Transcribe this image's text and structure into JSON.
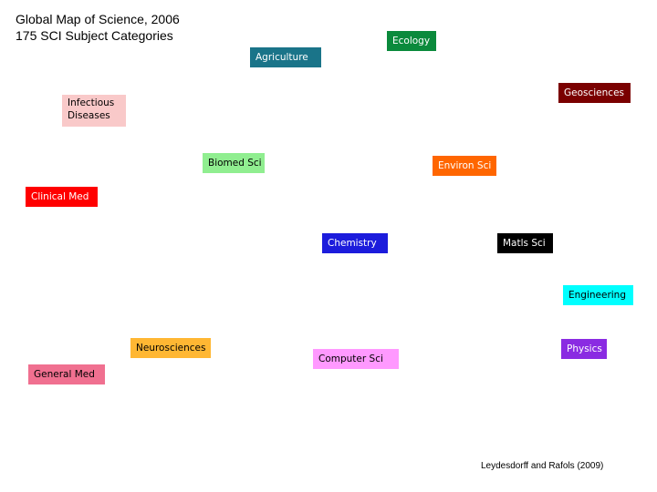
{
  "header": {
    "title": "Global Map of Science, 2006",
    "subtitle": "175 SCI Subject Categories"
  },
  "nodes": [
    {
      "label": "Ecology"
    },
    {
      "label": "Agriculture"
    },
    {
      "label": "Geosciences"
    },
    {
      "label": "Infectious Diseases"
    },
    {
      "label": "Biomed Sci"
    },
    {
      "label": "Environ Sci"
    },
    {
      "label": "Clinical Med"
    },
    {
      "label": "Chemistry"
    },
    {
      "label": "Matls Sci"
    },
    {
      "label": "Engineering"
    },
    {
      "label": "Neurosciences"
    },
    {
      "label": "Physics"
    },
    {
      "label": "Computer Sci"
    },
    {
      "label": "General Med"
    }
  ],
  "footer": {
    "credit": "Leydesdorff and Rafols (2009)"
  }
}
